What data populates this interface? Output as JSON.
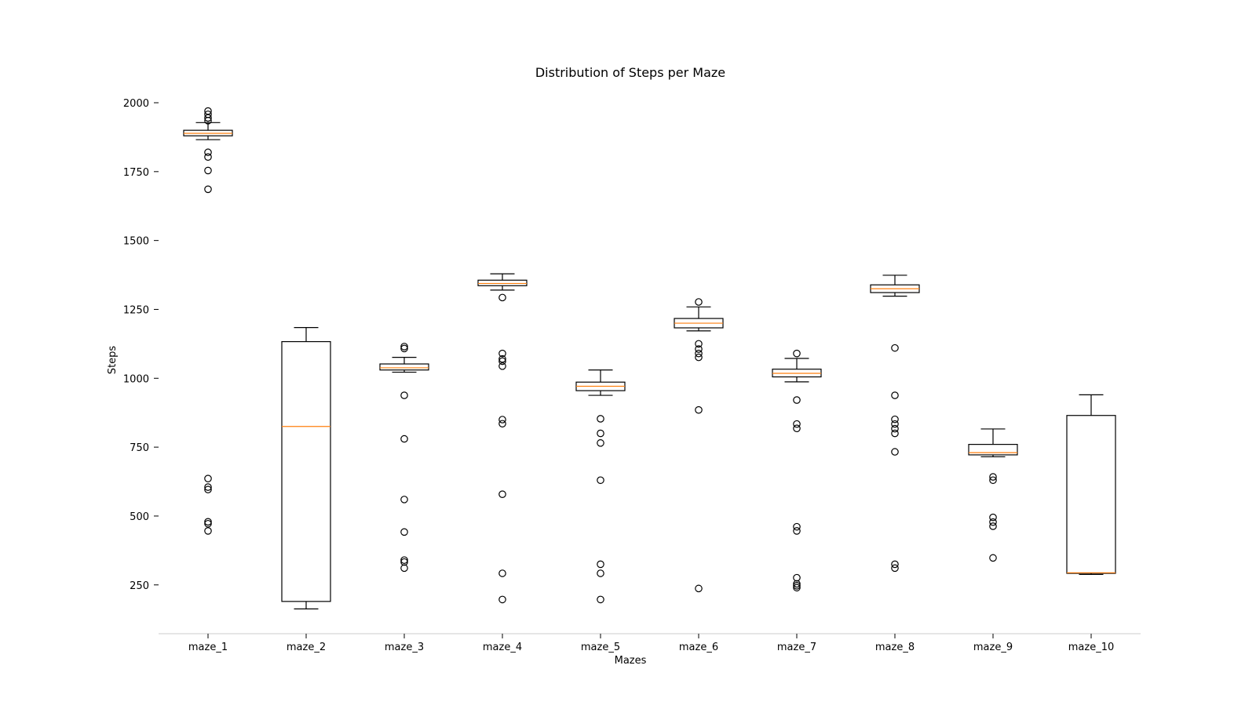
{
  "chart_data": {
    "type": "box",
    "title": "Distribution of Steps per Maze",
    "xlabel": "Mazes",
    "ylabel": "Steps",
    "ylim": [
      75,
      2085
    ],
    "yticks": [
      250,
      500,
      750,
      1000,
      1250,
      1500,
      1750,
      2000
    ],
    "grid": false,
    "colors": {
      "box": "#000000",
      "median": "#ff7f0e",
      "axis": "#cccccc"
    },
    "categories": [
      "maze_1",
      "maze_2",
      "maze_3",
      "maze_4",
      "maze_5",
      "maze_6",
      "maze_7",
      "maze_8",
      "maze_9",
      "maze_10"
    ],
    "boxes": [
      {
        "label": "maze_1",
        "whislo": 1866,
        "q1": 1880,
        "median": 1889,
        "q3": 1900,
        "whishi": 1928,
        "fliers": [
          1970,
          1958,
          1945,
          1935,
          1820,
          1803,
          1754,
          1686,
          636,
          605,
          596,
          479,
          472,
          446
        ]
      },
      {
        "label": "maze_2",
        "whislo": 163,
        "q1": 190,
        "median": 825,
        "q3": 1133,
        "whishi": 1184,
        "fliers": []
      },
      {
        "label": "maze_3",
        "whislo": 1022,
        "q1": 1030,
        "median": 1038,
        "q3": 1052,
        "whishi": 1076,
        "fliers": [
          1115,
          1108,
          938,
          780,
          560,
          442,
          340,
          333,
          311
        ]
      },
      {
        "label": "maze_4",
        "whislo": 1320,
        "q1": 1336,
        "median": 1344,
        "q3": 1356,
        "whishi": 1379,
        "fliers": [
          1293,
          1090,
          1070,
          1062,
          1044,
          850,
          835,
          579,
          292,
          197
        ]
      },
      {
        "label": "maze_5",
        "whislo": 938,
        "q1": 955,
        "median": 971,
        "q3": 986,
        "whishi": 1030,
        "fliers": [
          853,
          800,
          765,
          630,
          325,
          292,
          197
        ]
      },
      {
        "label": "maze_6",
        "whislo": 1172,
        "q1": 1183,
        "median": 1200,
        "q3": 1217,
        "whishi": 1259,
        "fliers": [
          1277,
          1125,
          1106,
          1090,
          1076,
          885,
          237
        ]
      },
      {
        "label": "maze_7",
        "whislo": 987,
        "q1": 1005,
        "median": 1018,
        "q3": 1033,
        "whishi": 1072,
        "fliers": [
          1090,
          921,
          834,
          818,
          461,
          446,
          276,
          254,
          247,
          240
        ]
      },
      {
        "label": "maze_8",
        "whislo": 1298,
        "q1": 1311,
        "median": 1325,
        "q3": 1339,
        "whishi": 1374,
        "fliers": [
          1110,
          938,
          851,
          834,
          817,
          800,
          733,
          325,
          311
        ]
      },
      {
        "label": "maze_9",
        "whislo": 715,
        "q1": 722,
        "median": 730,
        "q3": 760,
        "whishi": 816,
        "fliers": [
          642,
          630,
          495,
          478,
          463,
          348
        ]
      },
      {
        "label": "maze_10",
        "whislo": 288,
        "q1": 292,
        "median": 294,
        "q3": 865,
        "whishi": 940,
        "fliers": []
      }
    ]
  }
}
